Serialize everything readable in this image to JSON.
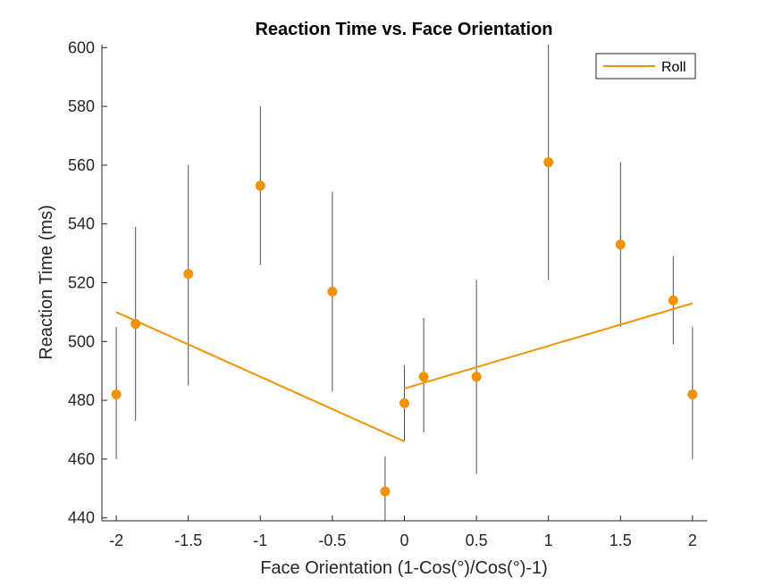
{
  "chart_data": {
    "type": "scatter",
    "title": "Reaction Time vs. Face Orientation",
    "xlabel": "Face Orientation (1-Cos(°)/Cos(°)-1)",
    "ylabel": "Reaction Time (ms)",
    "xlim": [
      -2.1,
      2.1
    ],
    "ylim": [
      439,
      601
    ],
    "x_ticks": [
      -2,
      -1.5,
      -1,
      -0.5,
      0,
      0.5,
      1,
      1.5,
      2
    ],
    "x_tick_labels": [
      "-2",
      "-1.5",
      "-1",
      "-0.5",
      "0",
      "0.5",
      "1",
      "1.5",
      "2"
    ],
    "y_ticks": [
      440,
      460,
      480,
      500,
      520,
      540,
      560,
      580,
      600
    ],
    "y_tick_labels": [
      "440",
      "460",
      "480",
      "500",
      "520",
      "540",
      "560",
      "580",
      "600"
    ],
    "grid": false,
    "legend_position": "top-right",
    "points": [
      {
        "x": -2.0,
        "y": 482,
        "y_low": 460,
        "y_high": 505
      },
      {
        "x": -1.866,
        "y": 506,
        "y_low": 473,
        "y_high": 539
      },
      {
        "x": -1.5,
        "y": 523,
        "y_low": 485,
        "y_high": 560
      },
      {
        "x": -1.0,
        "y": 553,
        "y_low": 526,
        "y_high": 580
      },
      {
        "x": -0.5,
        "y": 517,
        "y_low": 483,
        "y_high": 551
      },
      {
        "x": -0.134,
        "y": 449,
        "y_low": 439,
        "y_high": 461
      },
      {
        "x": 0.0,
        "y": 479,
        "y_low": 466,
        "y_high": 492
      },
      {
        "x": 0.134,
        "y": 488,
        "y_low": 469,
        "y_high": 508
      },
      {
        "x": 0.5,
        "y": 488,
        "y_low": 455,
        "y_high": 521
      },
      {
        "x": 1.0,
        "y": 561,
        "y_low": 521,
        "y_high": 601
      },
      {
        "x": 1.5,
        "y": 533,
        "y_low": 505,
        "y_high": 561
      },
      {
        "x": 1.866,
        "y": 514,
        "y_low": 499,
        "y_high": 529
      },
      {
        "x": 2.0,
        "y": 482,
        "y_low": 460,
        "y_high": 505
      }
    ],
    "fit_lines": [
      {
        "name": "Roll",
        "x": [
          -2.0,
          0.0
        ],
        "y": [
          510,
          466
        ]
      },
      {
        "name": "Roll",
        "x": [
          0.0,
          2.0
        ],
        "y": [
          484,
          513
        ]
      }
    ],
    "legend": [
      "Roll"
    ],
    "colors": {
      "marker": "#f39200",
      "fit_line": "#f39200",
      "error_bar": "#3c3c3c",
      "axis": "#262626"
    }
  }
}
